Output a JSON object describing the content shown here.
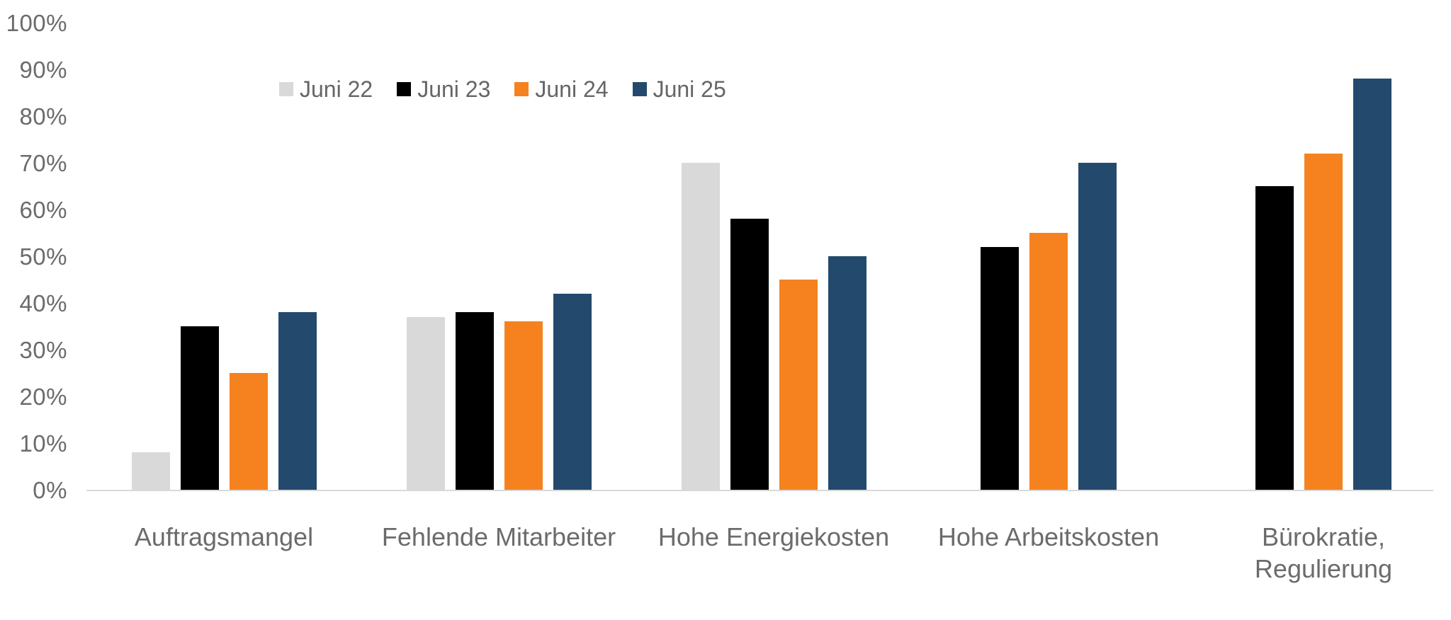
{
  "chart_data": {
    "type": "bar",
    "title": "",
    "categories": [
      "Auftragsmangel",
      "Fehlende Mitarbeiter",
      "Hohe Energiekosten",
      "Hohe Arbeitskosten",
      "Bürokratie,\nRegulierung"
    ],
    "series": [
      {
        "name": "Juni 22",
        "color": "#D9D9D9",
        "values": [
          8,
          37,
          70,
          null,
          null
        ]
      },
      {
        "name": "Juni 23",
        "color": "#000000",
        "values": [
          35,
          38,
          58,
          52,
          65
        ]
      },
      {
        "name": "Juni 24",
        "color": "#F5821F",
        "values": [
          25,
          36,
          45,
          55,
          72
        ]
      },
      {
        "name": "Juni 25",
        "color": "#234A6D",
        "values": [
          38,
          42,
          50,
          70,
          88
        ]
      }
    ],
    "y_axis": {
      "min": 0,
      "max": 100,
      "step": 10,
      "format": "percent",
      "tick_labels": [
        "0%",
        "10%",
        "20%",
        "30%",
        "40%",
        "50%",
        "60%",
        "70%",
        "80%",
        "90%",
        "100%"
      ]
    },
    "legend": {
      "position": "top",
      "labels": [
        "Juni 22",
        "Juni 23",
        "Juni 24",
        "Juni 25"
      ]
    },
    "grid": false,
    "colors": {
      "axis_line": "#D9D9D9",
      "tick_text": "#6B6B6B",
      "category_text": "#6B6B6B",
      "legend_text": "#666666",
      "background": "#FFFFFF"
    }
  }
}
